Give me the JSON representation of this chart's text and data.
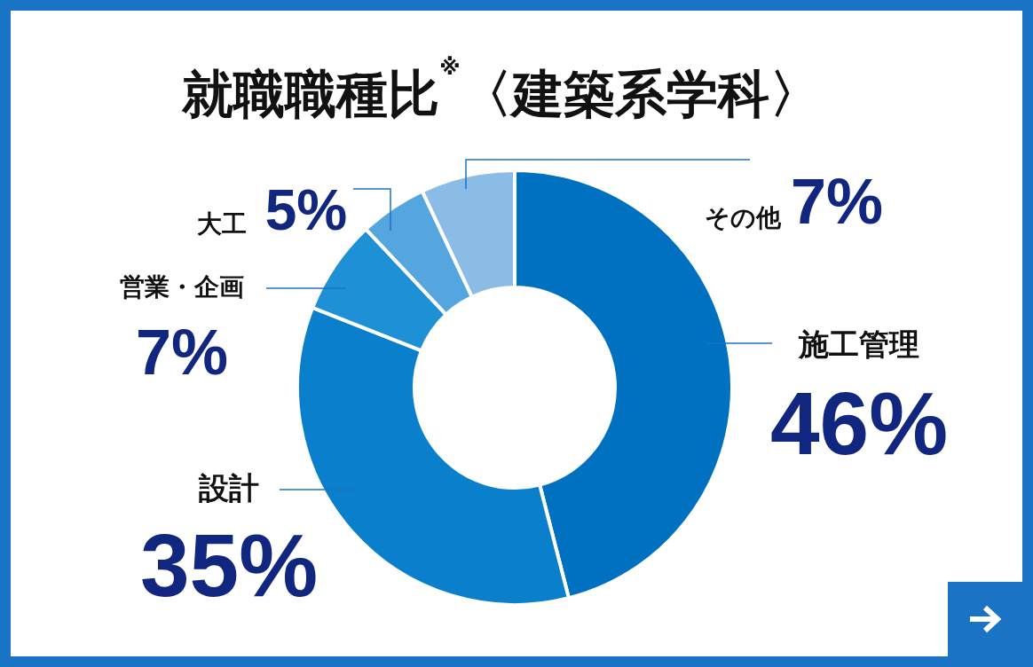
{
  "chart_data": {
    "type": "donut",
    "title": "就職職種比$^{※}$〈建築系学科〉",
    "categories": [
      "施工管理",
      "設計",
      "営業・企画",
      "大工",
      "その他"
    ],
    "values": [
      46,
      35,
      7,
      5,
      7
    ],
    "colors": [
      "#0070c0",
      "#0a7fcc",
      "#1e90d6",
      "#55a5de",
      "#8bbce6"
    ],
    "value_labels": [
      "46%",
      "35%",
      "7%",
      "5%",
      "7%"
    ]
  }
}
